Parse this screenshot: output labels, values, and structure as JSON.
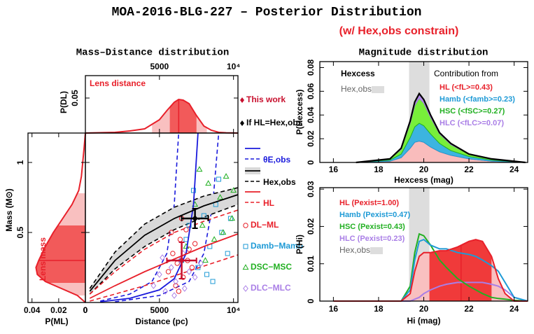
{
  "figure": {
    "title": "MOA-2016-BLG-227 – Posterior Distribution",
    "subtitle": "(w/ Hex,obs constrain)",
    "left_title": "Mass–Distance distribution",
    "right_title": "Magnitude distribution"
  },
  "chart_data": [
    {
      "type": "area",
      "ylabel": "P(DL)",
      "annotation": "Lens distance",
      "color": "#e8202a",
      "fill": "#f9c0c0",
      "band_fill": "#f25a5a",
      "xlim": [
        0,
        10300
      ],
      "ylim": [
        0,
        0.082
      ],
      "xticks": [
        5000,
        {
          "value": 10000,
          "label": "10⁴"
        }
      ],
      "yticks": [
        0.05
      ],
      "x": [
        0,
        2000,
        3000,
        4000,
        5000,
        5500,
        6000,
        6300,
        6600,
        7000,
        7500,
        8000,
        8500,
        9000,
        9500,
        10300
      ],
      "values": [
        0,
        0.001,
        0.003,
        0.006,
        0.019,
        0.032,
        0.044,
        0.048,
        0.047,
        0.042,
        0.025,
        0.01,
        0.004,
        0.001,
        0.0004,
        0
      ],
      "median": 6300,
      "band": [
        5700,
        7500
      ],
      "outer_band": [
        4500,
        8200
      ]
    },
    {
      "type": "area_h",
      "xlabel": "P(ML)",
      "ylabel": "Mass (M⊙)",
      "annotation": "Lens mass",
      "color": "#e8202a",
      "fill": "#f9c0c0",
      "band_fill": "#f25a5a",
      "xlim": [
        0.043,
        0
      ],
      "ylim": [
        0,
        1.21
      ],
      "xticks": [
        0.04,
        0.02,
        0
      ],
      "yticks": [
        0.5,
        1
      ],
      "mass": [
        0,
        0.05,
        0.1,
        0.15,
        0.2,
        0.25,
        0.3,
        0.4,
        0.5,
        0.6,
        0.7,
        0.8,
        0.9,
        1.0,
        1.1,
        1.21
      ],
      "values": [
        0,
        0.006,
        0.018,
        0.03,
        0.036,
        0.037,
        0.035,
        0.03,
        0.024,
        0.017,
        0.01,
        0.005,
        0.003,
        0.002,
        0.001,
        0
      ],
      "median": 0.3,
      "band": [
        0.14,
        0.55
      ],
      "outer_band": [
        0.05,
        0.78
      ]
    },
    {
      "type": "scatter",
      "xlabel": "Distance (pc)",
      "xlim": [
        0,
        10300
      ],
      "ylim": [
        0,
        1.21
      ],
      "xticks": [
        0,
        5000,
        {
          "value": 10000,
          "label": "10⁴"
        }
      ],
      "curves": [
        {
          "name": "θE,obs",
          "color": "#1a1adc",
          "x": [
            1000,
            3000,
            5000,
            6000,
            6800,
            7300,
            7600
          ],
          "values": [
            0.005,
            0.03,
            0.09,
            0.17,
            0.35,
            0.7,
            1.21
          ],
          "bounds": [
            {
              "x": [
                1000,
                3000,
                4500,
                5500,
                6000,
                6300
              ],
              "values": [
                0.01,
                0.06,
                0.15,
                0.35,
                0.7,
                1.21
              ]
            },
            {
              "x": [
                2000,
                5000,
                7000,
                8000,
                8600,
                9000
              ],
              "values": [
                0.005,
                0.05,
                0.15,
                0.35,
                0.7,
                1.21
              ]
            }
          ]
        },
        {
          "name": "Hex,obs",
          "color": "#000000",
          "band_fill": "#d9d9d9",
          "x": [
            300,
            2000,
            4000,
            6000,
            8000,
            10300
          ],
          "values": [
            0.08,
            0.3,
            0.48,
            0.6,
            0.69,
            0.77
          ],
          "bounds": [
            {
              "x": [
                300,
                2000,
                4000,
                6000,
                8000,
                10300
              ],
              "values": [
                0.1,
                0.36,
                0.56,
                0.68,
                0.76,
                0.82
              ]
            },
            {
              "x": [
                300,
                2000,
                4000,
                6000,
                8000,
                10300
              ],
              "values": [
                0.06,
                0.24,
                0.4,
                0.52,
                0.61,
                0.7
              ]
            }
          ]
        },
        {
          "name": "HL",
          "color": "#e8202a",
          "x": [
            300,
            2000,
            4000,
            6000,
            8000,
            10300
          ],
          "values": [
            0.03,
            0.12,
            0.22,
            0.31,
            0.4,
            0.49
          ],
          "bounds": [
            {
              "x": [
                300,
                2000,
                4000,
                6000,
                8000,
                10300
              ],
              "values": [
                0.06,
                0.22,
                0.38,
                0.5,
                0.58,
                0.66
              ]
            },
            {
              "x": [
                300,
                2000,
                4000,
                6000,
                8000,
                10300
              ],
              "values": [
                0.01,
                0.06,
                0.12,
                0.19,
                0.26,
                0.34
              ]
            }
          ]
        }
      ],
      "series": [
        {
          "name": "DL−ML",
          "color": "#e8202a",
          "marker": "circle",
          "x": [
            5600,
            5900,
            6200,
            6400,
            6600,
            6800,
            7000,
            7200,
            6100,
            6500,
            6900,
            7400,
            5800,
            6300
          ],
          "values": [
            0.22,
            0.35,
            0.28,
            0.45,
            0.18,
            0.52,
            0.38,
            0.25,
            0.12,
            0.6,
            0.3,
            0.42,
            0.5,
            0.08
          ]
        },
        {
          "name": "Damb−Mamb",
          "color": "#1e9ad6",
          "marker": "square",
          "x": [
            6500,
            7000,
            7600,
            8000,
            8400,
            8800,
            9200,
            9600,
            7300,
            8200,
            9000,
            9800,
            6800,
            8600
          ],
          "values": [
            0.3,
            0.55,
            0.25,
            0.62,
            0.4,
            0.7,
            0.5,
            0.35,
            0.8,
            0.2,
            0.88,
            0.6,
            0.45,
            0.15
          ]
        },
        {
          "name": "DSC−MSC",
          "color": "#22b022",
          "marker": "triangle",
          "x": [
            6800,
            7400,
            7900,
            8300,
            8700,
            9100,
            9500,
            9900,
            8100,
            9300,
            7700,
            10000
          ],
          "values": [
            0.4,
            0.7,
            0.55,
            0.85,
            0.45,
            0.75,
            0.9,
            0.6,
            0.3,
            0.5,
            0.95,
            0.8
          ]
        },
        {
          "name": "DLC−MLC",
          "color": "#a97ee6",
          "marker": "diamond",
          "x": [
            4600,
            5000,
            5400,
            5800,
            6100,
            6400,
            6700,
            7000,
            7400,
            7800,
            5200,
            6000,
            6600
          ],
          "values": [
            0.12,
            0.2,
            0.08,
            0.25,
            0.15,
            0.3,
            0.1,
            0.22,
            0.18,
            0.28,
            0.32,
            0.05,
            0.35
          ]
        }
      ],
      "errorbars": [
        {
          "label": "This work",
          "x": 6500,
          "y": 0.3,
          "xerr": 1000,
          "yerr": 0.13,
          "color": "#c8102e"
        },
        {
          "label": "If HL=Hex,obs",
          "x": 7400,
          "y": 0.6,
          "xerr": 900,
          "yerr": 0.07,
          "color": "#000000"
        }
      ]
    },
    {
      "type": "stacked_area",
      "xlabel": "Hexcess (mag)",
      "ylabel": "P(Hexcess)",
      "legend_title": "Hexcess",
      "band_label": "Hex,obs",
      "contribution_label": "Contribution from",
      "xlim": [
        15.4,
        24.6
      ],
      "ylim": [
        0,
        0.085
      ],
      "xticks": [
        16,
        18,
        20,
        22,
        24
      ],
      "yticks": [
        0,
        0.02,
        0.04,
        0.06,
        0.08
      ],
      "obs_band": [
        19.35,
        20.25
      ],
      "band_color": "#dddddd",
      "total_color": "#000000",
      "x": [
        17,
        18.5,
        19,
        19.4,
        19.6,
        19.8,
        20,
        20.3,
        20.7,
        21.2,
        22,
        23,
        24.5
      ],
      "series": [
        {
          "name": "HL (<fL>=0.43)",
          "color": "#e8202a",
          "fill": "#f9bcbc",
          "values": [
            0,
            0.001,
            0.004,
            0.012,
            0.017,
            0.018,
            0.017,
            0.013,
            0.009,
            0.006,
            0.003,
            0.001,
            0
          ]
        },
        {
          "name": "Hamb (<famb>=0.23)",
          "color": "#1e9ad6",
          "fill": "#3cb4e0",
          "values": [
            0,
            0.001,
            0.003,
            0.009,
            0.013,
            0.015,
            0.014,
            0.011,
            0.007,
            0.004,
            0.002,
            0.001,
            0
          ]
        },
        {
          "name": "HSC (<fSC>=0.27)",
          "color": "#22b022",
          "fill": "#78ef3a",
          "values": [
            0,
            0.001,
            0.004,
            0.012,
            0.018,
            0.021,
            0.019,
            0.014,
            0.008,
            0.005,
            0.002,
            0.001,
            0
          ]
        },
        {
          "name": "HLC (<fLC>=0.07)",
          "color": "#a97ee6",
          "fill": "#b38be8",
          "values": [
            0,
            0,
            0.001,
            0.002,
            0.003,
            0.004,
            0.003,
            0.002,
            0.001,
            0.001,
            0,
            0,
            0
          ]
        }
      ]
    },
    {
      "type": "line",
      "xlabel": "Hi (mag)",
      "ylabel": "P(Hi)",
      "band_label": "Hex,obs",
      "xlim": [
        15.4,
        24.6
      ],
      "ylim": [
        0,
        0.0304
      ],
      "xticks": [
        16,
        18,
        20,
        22,
        24
      ],
      "yticks": [
        0,
        0.01,
        0.02,
        0.03
      ],
      "obs_band": [
        19.35,
        20.25
      ],
      "band_color": "#dddddd",
      "x": [
        16,
        19,
        19.4,
        19.6,
        19.8,
        20,
        20.3,
        20.7,
        21,
        21.5,
        22,
        22.3,
        22.6,
        23,
        23.3,
        23.6,
        24,
        24.6
      ],
      "series": [
        {
          "name": "HL (Pexist=1.00)",
          "color": "#e8202a",
          "fill": "#f9c0c0",
          "band_fill": "#f03a3a",
          "fill_band": [
            20.25,
            23.0
          ],
          "median": 21.65,
          "values": [
            0,
            0,
            0.002,
            0.008,
            0.012,
            0.013,
            0.013,
            0.0135,
            0.0135,
            0.0145,
            0.016,
            0.0165,
            0.016,
            0.012,
            0.006,
            0.002,
            0,
            0
          ]
        },
        {
          "name": "Hamb (Pexist=0.47)",
          "color": "#1e9ad6",
          "values": [
            0,
            0,
            0.003,
            0.011,
            0.016,
            0.0165,
            0.015,
            0.014,
            0.014,
            0.013,
            0.0125,
            0.012,
            0.011,
            0.0095,
            0.008,
            0.005,
            0.001,
            0
          ]
        },
        {
          "name": "HSC (Pexist=0.43)",
          "color": "#22b022",
          "values": [
            0,
            0,
            0.004,
            0.013,
            0.018,
            0.0175,
            0.015,
            0.011,
            0.009,
            0.006,
            0.004,
            0.003,
            0.002,
            0.001,
            0.0007,
            0.0005,
            0.0002,
            0
          ]
        },
        {
          "name": "HLC (Pexist=0.23)",
          "color": "#a97ee6",
          "values": [
            0,
            0,
            0,
            0.0005,
            0.001,
            0.002,
            0.003,
            0.004,
            0.0045,
            0.005,
            0.005,
            0.005,
            0.005,
            0.0045,
            0.004,
            0.003,
            0.001,
            0
          ]
        }
      ]
    }
  ]
}
